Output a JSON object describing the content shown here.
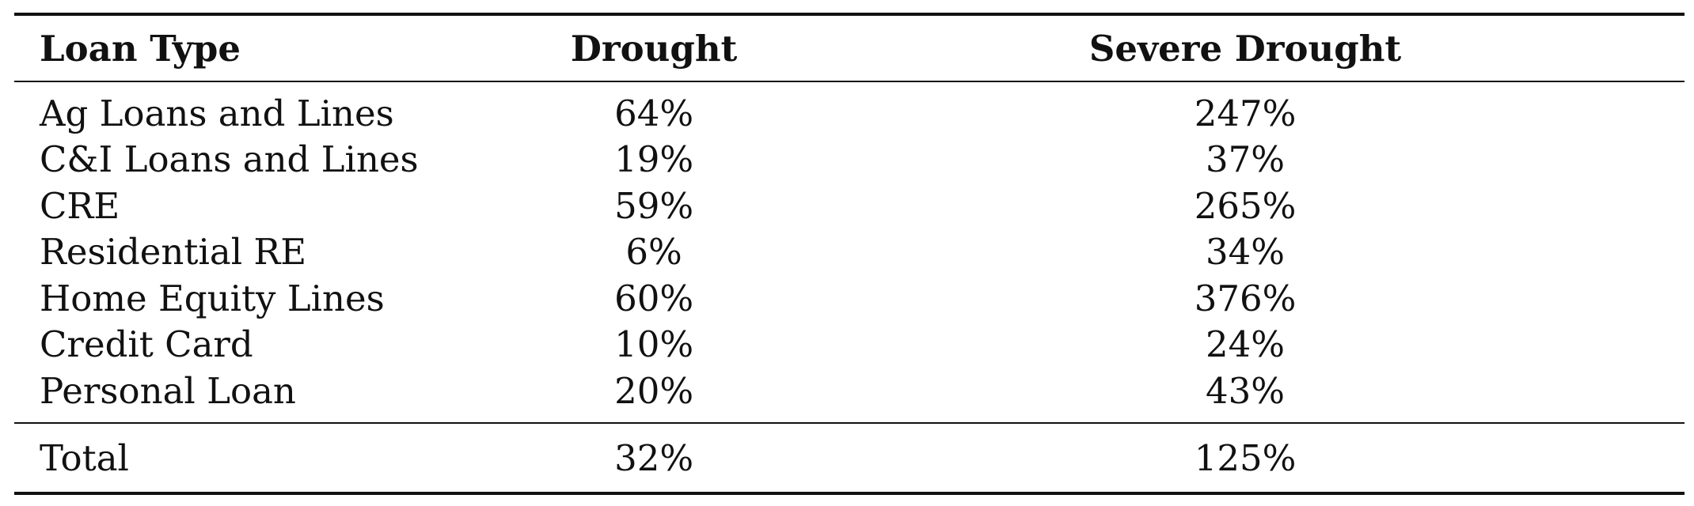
{
  "table": {
    "headers": {
      "loan_type": "Loan Type",
      "drought": "Drought",
      "severe_drought": "Severe Drought"
    },
    "rows": [
      {
        "loan_type": "Ag Loans and Lines",
        "drought": "64%",
        "severe_drought": "247%"
      },
      {
        "loan_type": "C&I Loans and Lines",
        "drought": "19%",
        "severe_drought": "37%"
      },
      {
        "loan_type": "CRE",
        "drought": "59%",
        "severe_drought": "265%"
      },
      {
        "loan_type": "Residential RE",
        "drought": "6%",
        "severe_drought": "34%"
      },
      {
        "loan_type": "Home Equity Lines",
        "drought": "60%",
        "severe_drought": "376%"
      },
      {
        "loan_type": "Credit Card",
        "drought": "10%",
        "severe_drought": "24%"
      },
      {
        "loan_type": "Personal Loan",
        "drought": "20%",
        "severe_drought": "43%"
      }
    ],
    "total": {
      "loan_type": "Total",
      "drought": "32%",
      "severe_drought": "125%"
    }
  }
}
